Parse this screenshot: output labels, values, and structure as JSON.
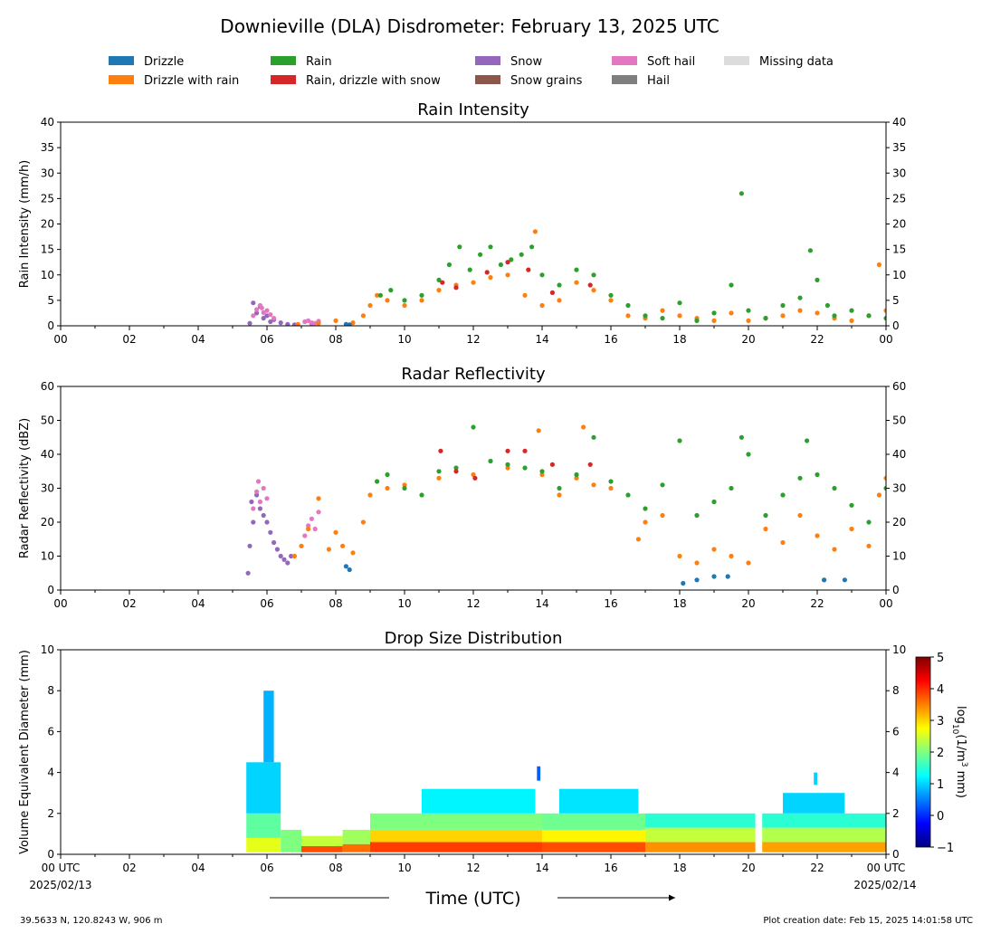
{
  "title": "Downieville (DLA) Disdrometer: February 13, 2025 UTC",
  "legend": [
    {
      "label": "Drizzle",
      "color": "#1f77b4"
    },
    {
      "label": "Drizzle with rain",
      "color": "#ff7f0e"
    },
    {
      "label": "Rain",
      "color": "#2ca02c"
    },
    {
      "label": "Rain, drizzle with snow",
      "color": "#d62728"
    },
    {
      "label": "Snow",
      "color": "#9467bd"
    },
    {
      "label": "Snow grains",
      "color": "#8c564b"
    },
    {
      "label": "Soft hail",
      "color": "#e377c2"
    },
    {
      "label": "Hail",
      "color": "#7f7f7f"
    },
    {
      "label": "Missing data",
      "color": "#dcdcdc"
    }
  ],
  "x_ticks": [
    "00",
    "02",
    "04",
    "06",
    "08",
    "10",
    "12",
    "14",
    "16",
    "18",
    "20",
    "22",
    "00"
  ],
  "x_ticks_bottom": [
    "00 UTC",
    "02",
    "04",
    "06",
    "08",
    "10",
    "12",
    "14",
    "16",
    "18",
    "20",
    "22",
    "00 UTC"
  ],
  "start_date": "2025/02/13",
  "end_date": "2025/02/14",
  "xlabel": "Time (UTC)",
  "footer_left": "39.5633 N, 120.8243 W, 906 m",
  "footer_right": "Plot creation date: Feb 15, 2025 14:01:58 UTC",
  "colorbar": {
    "label_prefix": "log",
    "label_sub": "10",
    "label_mid": "(1/m",
    "label_sup": "3",
    "label_suffix": " mm)",
    "ticks": [
      "5",
      "4",
      "3",
      "2",
      "1",
      "0",
      "−1"
    ],
    "range": [
      -1,
      5
    ],
    "colors": [
      "#00007f",
      "#0000ff",
      "#007fff",
      "#00ffff",
      "#7fff7f",
      "#ffff00",
      "#ff7f00",
      "#ff0000",
      "#7f0000"
    ]
  },
  "chart_data": [
    {
      "type": "scatter",
      "title": "Rain Intensity",
      "ylabel": "Rain Intensity (mm/h)",
      "xlim": [
        0,
        24
      ],
      "ylim": [
        0,
        40
      ],
      "yticks": [
        "0",
        "5",
        "10",
        "15",
        "20",
        "25",
        "30",
        "35",
        "40"
      ],
      "series": [
        {
          "name": "Snow",
          "color": "#9467bd",
          "x": [
            5.5,
            5.6,
            5.7,
            5.8,
            5.9,
            6.0,
            6.1,
            6.2,
            6.4,
            6.6,
            6.8,
            7.3
          ],
          "y": [
            0.5,
            4.5,
            2.5,
            3.8,
            1.5,
            2.0,
            0.8,
            1.2,
            0.6,
            0.3,
            0.2,
            0.4
          ]
        },
        {
          "name": "Soft hail",
          "color": "#e377c2",
          "x": [
            5.6,
            5.7,
            5.8,
            5.85,
            5.9,
            6.0,
            6.1,
            6.2,
            7.1,
            7.2,
            7.3,
            7.4,
            7.5
          ],
          "y": [
            2.0,
            3.2,
            4.0,
            3.5,
            2.6,
            3.0,
            2.2,
            1.5,
            0.8,
            1.0,
            0.6,
            0.5,
            0.9
          ]
        },
        {
          "name": "Drizzle with rain",
          "color": "#ff7f0e",
          "x": [
            6.9,
            7.5,
            8.0,
            8.5,
            8.8,
            9.0,
            9.2,
            9.5,
            10.0,
            10.5,
            11.0,
            11.5,
            12.0,
            12.5,
            13.0,
            13.5,
            13.8,
            14.0,
            14.5,
            15.0,
            15.5,
            16.0,
            16.5,
            17.0,
            17.5,
            18.0,
            18.5,
            19.0,
            19.5,
            20.0,
            20.5,
            21.0,
            21.5,
            22.0,
            22.5,
            23.0,
            23.5,
            23.8,
            24.0
          ],
          "y": [
            0.3,
            0.5,
            1.0,
            0.6,
            2.0,
            4.0,
            6.0,
            5.0,
            4.0,
            5.0,
            7.0,
            8.0,
            8.5,
            9.5,
            10.0,
            6.0,
            18.5,
            4.0,
            5.0,
            8.5,
            7.0,
            5.0,
            2.0,
            1.5,
            3.0,
            2.0,
            1.5,
            1.0,
            2.5,
            1.0,
            1.5,
            2.0,
            3.0,
            2.5,
            1.5,
            1.0,
            2.0,
            12.0,
            3.0
          ]
        },
        {
          "name": "Rain",
          "color": "#2ca02c",
          "x": [
            9.3,
            9.6,
            10.0,
            10.5,
            11.0,
            11.3,
            11.6,
            11.9,
            12.2,
            12.5,
            12.8,
            13.1,
            13.4,
            13.7,
            14.0,
            14.5,
            15.0,
            15.5,
            16.0,
            16.5,
            17.0,
            17.5,
            18.0,
            18.5,
            19.0,
            19.5,
            19.8,
            20.0,
            20.5,
            21.0,
            21.5,
            21.8,
            22.0,
            22.3,
            22.5,
            23.0,
            23.5,
            24.0
          ],
          "y": [
            6.0,
            7.0,
            5.0,
            6.0,
            9.0,
            12.0,
            15.5,
            11.0,
            14.0,
            15.5,
            12.0,
            13.0,
            14.0,
            15.5,
            10.0,
            8.0,
            11.0,
            10.0,
            6.0,
            4.0,
            2.0,
            1.5,
            4.5,
            1.0,
            2.5,
            8.0,
            26.0,
            3.0,
            1.5,
            4.0,
            5.5,
            14.8,
            9.0,
            4.0,
            2.0,
            3.0,
            2.0,
            1.5
          ]
        },
        {
          "name": "Rain, drizzle with snow",
          "color": "#d62728",
          "x": [
            11.1,
            11.5,
            12.4,
            13.0,
            13.6,
            14.3,
            15.4
          ],
          "y": [
            8.5,
            7.5,
            10.5,
            12.5,
            11.0,
            6.5,
            8.0
          ]
        },
        {
          "name": "Drizzle",
          "color": "#1f77b4",
          "x": [
            8.3,
            8.4
          ],
          "y": [
            0.3,
            0.2
          ]
        }
      ]
    },
    {
      "type": "scatter",
      "title": "Radar Reflectivity",
      "ylabel": "Radar Reflectivity (dBZ)",
      "xlim": [
        0,
        24
      ],
      "ylim": [
        0,
        60
      ],
      "yticks": [
        "0",
        "10",
        "20",
        "30",
        "40",
        "50",
        "60"
      ],
      "series": [
        {
          "name": "Snow",
          "color": "#9467bd",
          "x": [
            5.45,
            5.5,
            5.55,
            5.6,
            5.7,
            5.8,
            5.9,
            6.0,
            6.1,
            6.2,
            6.3,
            6.4,
            6.5,
            6.6,
            6.7
          ],
          "y": [
            5,
            13,
            26,
            20,
            28,
            24,
            22,
            20,
            17,
            14,
            12,
            10,
            9,
            8,
            10
          ]
        },
        {
          "name": "Soft hail",
          "color": "#e377c2",
          "x": [
            5.6,
            5.7,
            5.75,
            5.8,
            5.9,
            6.0,
            7.1,
            7.2,
            7.3,
            7.4,
            7.5
          ],
          "y": [
            24,
            29,
            32,
            26,
            30,
            27,
            16,
            19,
            21,
            18,
            23
          ]
        },
        {
          "name": "Drizzle with rain",
          "color": "#ff7f0e",
          "x": [
            6.8,
            7.0,
            7.2,
            7.5,
            7.8,
            8.0,
            8.2,
            8.5,
            8.8,
            9.0,
            9.5,
            10.0,
            11.0,
            12.0,
            13.0,
            13.9,
            14.0,
            14.5,
            15.0,
            15.2,
            15.5,
            16.0,
            16.8,
            17.0,
            17.5,
            18.0,
            18.5,
            19.0,
            19.5,
            20.0,
            20.5,
            21.0,
            21.5,
            22.0,
            22.2,
            22.5,
            23.0,
            23.5,
            23.8,
            24.0
          ],
          "y": [
            10,
            13,
            18,
            27,
            12,
            17,
            13,
            11,
            20,
            28,
            30,
            31,
            33,
            34,
            36,
            47,
            34,
            28,
            33,
            48,
            31,
            30,
            15,
            20,
            22,
            10,
            8,
            12,
            10,
            8,
            18,
            14,
            22,
            16,
            3,
            12,
            18,
            13,
            28,
            33
          ]
        },
        {
          "name": "Rain",
          "color": "#2ca02c",
          "x": [
            9.2,
            9.5,
            10.0,
            10.5,
            11.0,
            11.5,
            12.0,
            12.5,
            13.0,
            13.5,
            14.0,
            14.5,
            15.0,
            15.5,
            16.0,
            16.5,
            17.0,
            17.5,
            18.0,
            18.5,
            19.0,
            19.5,
            19.8,
            20.0,
            20.5,
            21.0,
            21.5,
            21.7,
            22.0,
            22.5,
            23.0,
            23.5,
            24.0
          ],
          "y": [
            32,
            34,
            30,
            28,
            35,
            36,
            48,
            38,
            37,
            36,
            35,
            30,
            34,
            45,
            32,
            28,
            24,
            31,
            44,
            22,
            26,
            30,
            45,
            40,
            22,
            28,
            33,
            44,
            34,
            30,
            25,
            20,
            30
          ]
        },
        {
          "name": "Rain, drizzle with snow",
          "color": "#d62728",
          "x": [
            11.05,
            11.5,
            12.05,
            13.0,
            13.5,
            14.3,
            15.4
          ],
          "y": [
            41,
            35,
            33,
            41,
            41,
            37,
            37
          ]
        },
        {
          "name": "Drizzle",
          "color": "#1f77b4",
          "x": [
            8.3,
            8.4,
            18.1,
            18.5,
            19.0,
            19.4,
            22.2,
            22.8
          ],
          "y": [
            7,
            6,
            2,
            3,
            4,
            4,
            3,
            3
          ]
        }
      ]
    },
    {
      "type": "heatmap",
      "title": "Drop Size Distribution",
      "ylabel": "Volume Equivalent Diameter (mm)",
      "xlim": [
        0,
        24
      ],
      "ylim": [
        0,
        10
      ],
      "yticks": [
        "0",
        "2",
        "4",
        "6",
        "8",
        "10"
      ],
      "cells": [
        {
          "x0": 5.4,
          "x1": 6.4,
          "y0": 0.1,
          "y1": 0.8,
          "v": 2.6
        },
        {
          "x0": 5.4,
          "x1": 6.4,
          "y0": 0.8,
          "y1": 2.0,
          "v": 1.8
        },
        {
          "x0": 5.4,
          "x1": 6.4,
          "y0": 2.0,
          "y1": 4.5,
          "v": 1.0
        },
        {
          "x0": 5.9,
          "x1": 6.2,
          "y0": 4.5,
          "y1": 8.0,
          "v": 0.8
        },
        {
          "x0": 6.4,
          "x1": 7.0,
          "y0": 0.1,
          "y1": 1.2,
          "v": 2.0
        },
        {
          "x0": 7.0,
          "x1": 8.2,
          "y0": 0.1,
          "y1": 0.4,
          "v": 3.8
        },
        {
          "x0": 7.0,
          "x1": 8.2,
          "y0": 0.4,
          "y1": 0.9,
          "v": 2.4
        },
        {
          "x0": 8.2,
          "x1": 9.0,
          "y0": 0.1,
          "y1": 0.5,
          "v": 3.6
        },
        {
          "x0": 8.2,
          "x1": 9.0,
          "y0": 0.5,
          "y1": 1.2,
          "v": 2.2
        },
        {
          "x0": 9.0,
          "x1": 14.0,
          "y0": 0.1,
          "y1": 0.6,
          "v": 3.9
        },
        {
          "x0": 9.0,
          "x1": 14.0,
          "y0": 0.6,
          "y1": 1.2,
          "v": 3.0
        },
        {
          "x0": 9.0,
          "x1": 14.0,
          "y0": 1.2,
          "y1": 2.0,
          "v": 2.0
        },
        {
          "x0": 10.5,
          "x1": 13.8,
          "y0": 2.0,
          "y1": 3.2,
          "v": 1.2
        },
        {
          "x0": 13.85,
          "x1": 13.95,
          "y0": 3.6,
          "y1": 4.3,
          "v": 0.3
        },
        {
          "x0": 14.0,
          "x1": 17.0,
          "y0": 0.1,
          "y1": 0.6,
          "v": 3.8
        },
        {
          "x0": 14.0,
          "x1": 17.0,
          "y0": 0.6,
          "y1": 1.2,
          "v": 2.8
        },
        {
          "x0": 14.0,
          "x1": 17.0,
          "y0": 1.2,
          "y1": 2.0,
          "v": 1.9
        },
        {
          "x0": 14.5,
          "x1": 16.8,
          "y0": 2.0,
          "y1": 3.2,
          "v": 1.1
        },
        {
          "x0": 17.0,
          "x1": 20.2,
          "y0": 0.1,
          "y1": 0.6,
          "v": 3.4
        },
        {
          "x0": 17.0,
          "x1": 20.2,
          "y0": 0.6,
          "y1": 1.3,
          "v": 2.4
        },
        {
          "x0": 17.0,
          "x1": 20.2,
          "y0": 1.3,
          "y1": 2.0,
          "v": 1.5
        },
        {
          "x0": 20.4,
          "x1": 24.0,
          "y0": 0.1,
          "y1": 0.6,
          "v": 3.3
        },
        {
          "x0": 20.4,
          "x1": 24.0,
          "y0": 0.6,
          "y1": 1.3,
          "v": 2.3
        },
        {
          "x0": 20.4,
          "x1": 24.0,
          "y0": 1.3,
          "y1": 2.0,
          "v": 1.5
        },
        {
          "x0": 21.0,
          "x1": 22.8,
          "y0": 2.0,
          "y1": 3.0,
          "v": 1.0
        },
        {
          "x0": 21.9,
          "x1": 22.0,
          "y0": 3.4,
          "y1": 4.0,
          "v": 1.0
        }
      ]
    }
  ]
}
